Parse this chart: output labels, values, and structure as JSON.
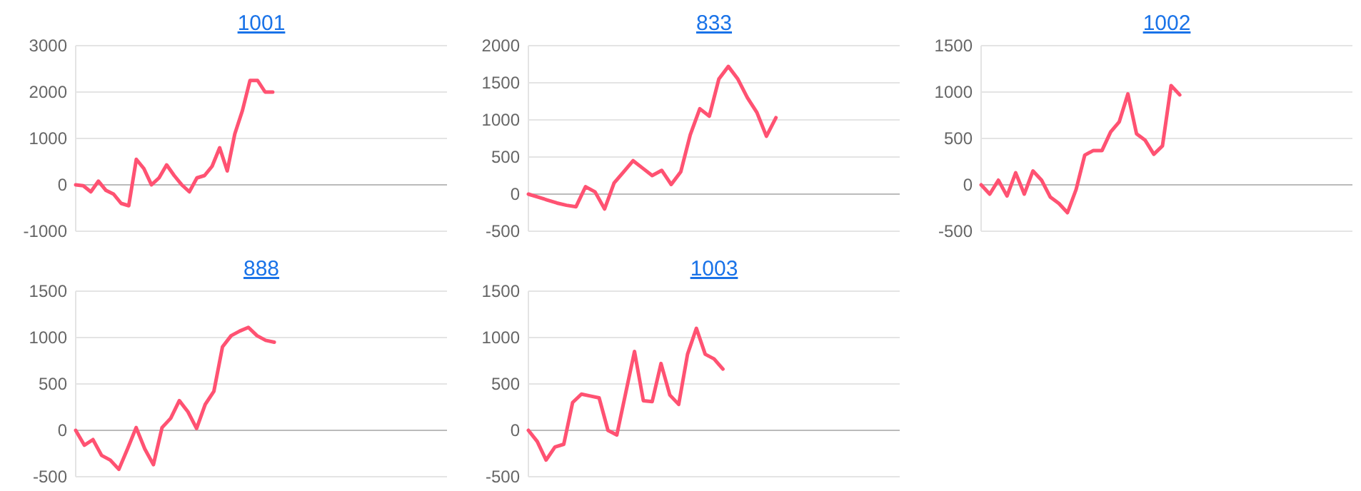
{
  "chart_data": [
    {
      "type": "line",
      "title": "1001",
      "categories": [
        null,
        null,
        null,
        null,
        null,
        null,
        null,
        null,
        null,
        null,
        null,
        null,
        null,
        null,
        null,
        null,
        null,
        null,
        null,
        null,
        null,
        null,
        null,
        null,
        null,
        null,
        null,
        null,
        null,
        null,
        null,
        null,
        null,
        null,
        null,
        null,
        null,
        null,
        null,
        null,
        null,
        null,
        null,
        null,
        null,
        null,
        null,
        null,
        null,
        null
      ],
      "series": [
        {
          "color": "#ff5272",
          "values": [
            0,
            -20,
            -150,
            80,
            -120,
            -200,
            -400,
            -450,
            550,
            350,
            0,
            150,
            430,
            200,
            0,
            -150,
            150,
            200,
            400,
            800,
            300,
            1100,
            1600,
            2250,
            2250,
            2000,
            2000,
            null,
            null,
            null,
            null,
            null,
            null,
            null,
            null,
            null,
            null,
            null,
            null,
            null,
            null,
            null,
            null,
            null,
            null,
            null,
            null,
            null,
            null,
            null
          ]
        }
      ],
      "ylim": [
        -1000,
        3000
      ],
      "yticks": [
        -1000,
        0,
        1000,
        2000,
        3000
      ],
      "grid": "y",
      "tick_labels": "y"
    },
    {
      "type": "line",
      "title": "833",
      "categories": [
        null,
        null,
        null,
        null,
        null,
        null,
        null,
        null,
        null,
        null,
        null,
        null,
        null,
        null,
        null,
        null,
        null,
        null,
        null,
        null,
        null,
        null,
        null,
        null,
        null,
        null,
        null,
        null,
        null,
        null,
        null,
        null,
        null,
        null,
        null,
        null,
        null,
        null,
        null,
        null
      ],
      "series": [
        {
          "color": "#ff5272",
          "values": [
            0,
            -40,
            -80,
            -120,
            -150,
            -170,
            100,
            30,
            -200,
            150,
            300,
            450,
            350,
            250,
            320,
            130,
            300,
            800,
            1150,
            1050,
            1550,
            1720,
            1550,
            1300,
            1100,
            780,
            1030,
            null,
            null,
            null,
            null,
            null,
            null,
            null,
            null,
            null,
            null,
            null,
            null,
            null
          ]
        }
      ],
      "ylim": [
        -500,
        2000
      ],
      "yticks": [
        -500,
        0,
        500,
        1000,
        1500,
        2000
      ],
      "grid": "y",
      "tick_labels": "y"
    },
    {
      "type": "line",
      "title": "1002",
      "categories": [
        null,
        null,
        null,
        null,
        null,
        null,
        null,
        null,
        null,
        null,
        null,
        null,
        null,
        null,
        null,
        null,
        null,
        null,
        null,
        null,
        null,
        null,
        null,
        null,
        null,
        null,
        null,
        null,
        null,
        null,
        null,
        null,
        null,
        null,
        null,
        null,
        null,
        null,
        null,
        null,
        null,
        null,
        null,
        null
      ],
      "series": [
        {
          "color": "#ff5272",
          "values": [
            0,
            -100,
            50,
            -120,
            130,
            -100,
            150,
            50,
            -130,
            -200,
            -300,
            -50,
            320,
            370,
            370,
            570,
            680,
            980,
            550,
            480,
            330,
            420,
            1070,
            970,
            null,
            null,
            null,
            null,
            null,
            null,
            null,
            null,
            null,
            null,
            null,
            null,
            null,
            null,
            null,
            null,
            null,
            null,
            null,
            null
          ]
        }
      ],
      "ylim": [
        -500,
        1500
      ],
      "yticks": [
        -500,
        0,
        500,
        1000,
        1500
      ],
      "grid": "y",
      "tick_labels": "y"
    },
    {
      "type": "line",
      "title": "888",
      "categories": [
        null,
        null,
        null,
        null,
        null,
        null,
        null,
        null,
        null,
        null,
        null,
        null,
        null,
        null,
        null,
        null,
        null,
        null,
        null,
        null,
        null,
        null,
        null,
        null,
        null,
        null,
        null,
        null,
        null,
        null,
        null,
        null,
        null,
        null,
        null,
        null,
        null,
        null,
        null,
        null,
        null,
        null,
        null,
        null
      ],
      "series": [
        {
          "color": "#ff5272",
          "values": [
            0,
            -160,
            -100,
            -270,
            -320,
            -420,
            -200,
            30,
            -200,
            -370,
            30,
            130,
            320,
            200,
            20,
            280,
            420,
            900,
            1020,
            1070,
            1110,
            1020,
            970,
            950,
            null,
            null,
            null,
            null,
            null,
            null,
            null,
            null,
            null,
            null,
            null,
            null,
            null,
            null,
            null,
            null,
            null,
            null,
            null,
            null
          ]
        }
      ],
      "ylim": [
        -500,
        1500
      ],
      "yticks": [
        -500,
        0,
        500,
        1000,
        1500
      ],
      "grid": "y",
      "tick_labels": "y"
    },
    {
      "type": "line",
      "title": "1003",
      "categories": [
        null,
        null,
        null,
        null,
        null,
        null,
        null,
        null,
        null,
        null,
        null,
        null,
        null,
        null,
        null,
        null,
        null,
        null,
        null,
        null,
        null,
        null,
        null,
        null,
        null,
        null,
        null,
        null,
        null,
        null,
        null,
        null,
        null,
        null,
        null,
        null,
        null,
        null,
        null,
        null,
        null,
        null,
        null
      ],
      "series": [
        {
          "color": "#ff5272",
          "values": [
            0,
            -120,
            -320,
            -180,
            -150,
            300,
            390,
            370,
            350,
            0,
            -50,
            400,
            850,
            320,
            310,
            720,
            380,
            280,
            820,
            1100,
            820,
            770,
            660,
            null,
            null,
            null,
            null,
            null,
            null,
            null,
            null,
            null,
            null,
            null,
            null,
            null,
            null,
            null,
            null,
            null,
            null,
            null,
            null
          ]
        }
      ],
      "ylim": [
        -500,
        1500
      ],
      "yticks": [
        -500,
        0,
        500,
        1000,
        1500
      ],
      "grid": "y",
      "tick_labels": "y"
    }
  ]
}
